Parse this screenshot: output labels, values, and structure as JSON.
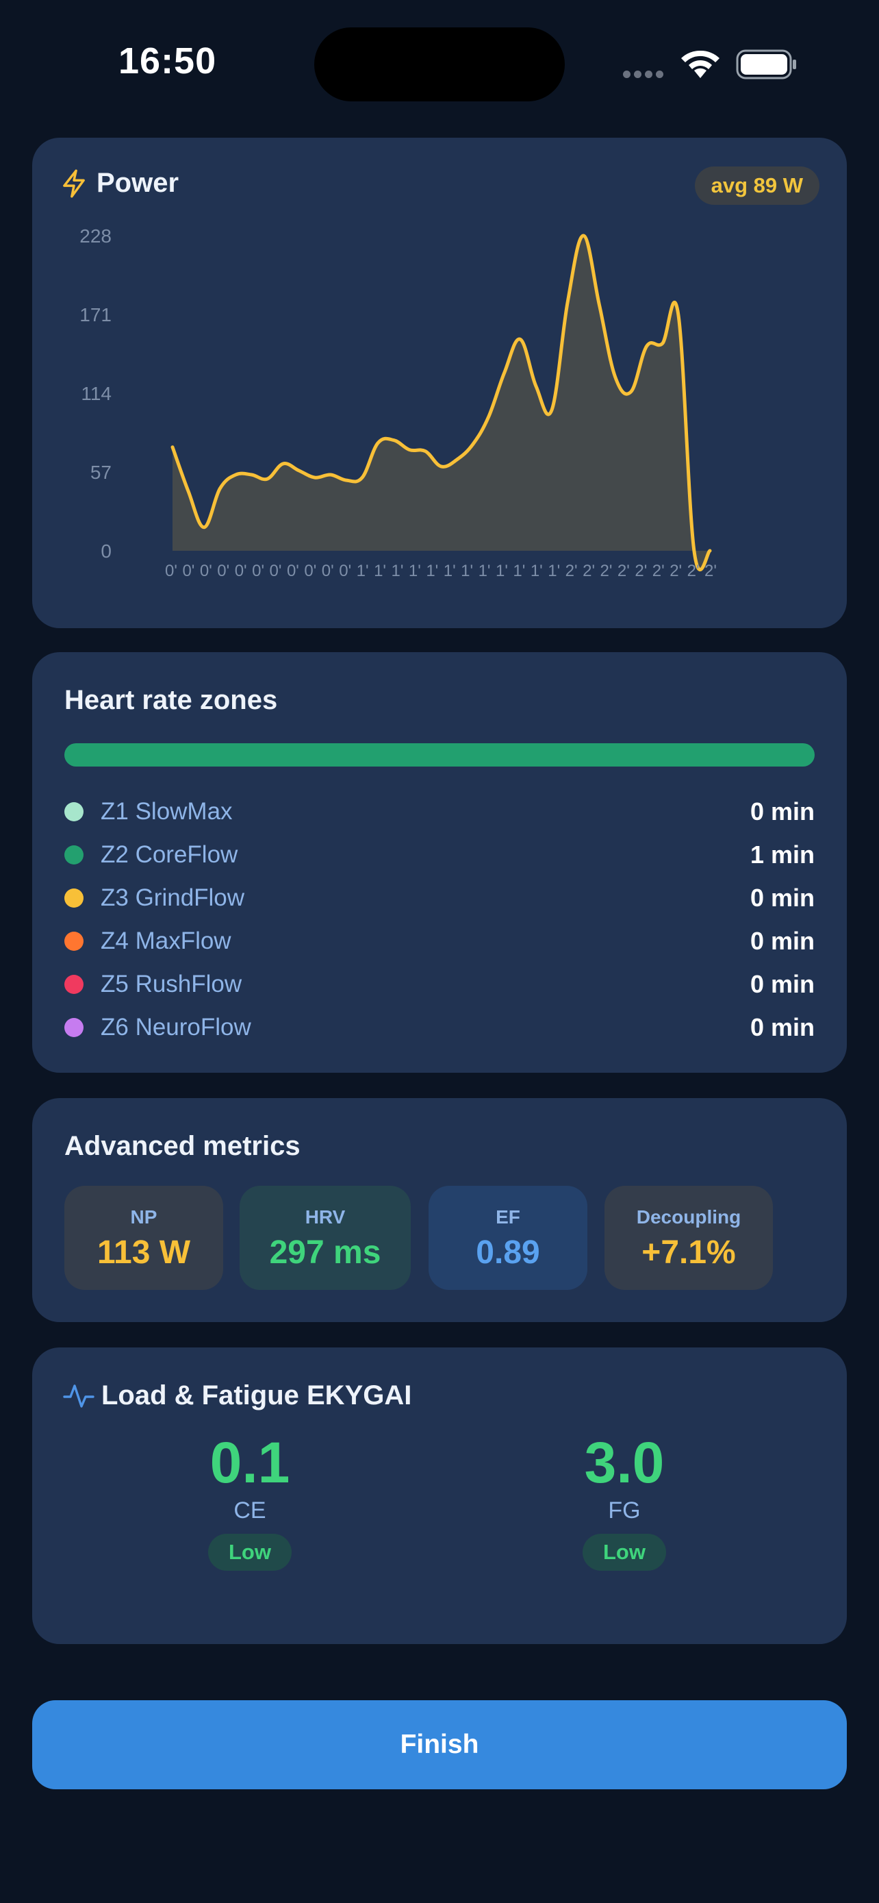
{
  "status_bar": {
    "time": "16:50"
  },
  "power": {
    "title": "Power",
    "avg_badge": "avg 89 W",
    "colors": {
      "line": "#f8c038",
      "area": "#4a4e4a"
    }
  },
  "chart_data": {
    "type": "area",
    "ylim": [
      0,
      228
    ],
    "y_ticks": [
      "228",
      "171",
      "114",
      "57",
      "0"
    ],
    "x_ticks": [
      "0'",
      "0'",
      "0'",
      "0'",
      "0'",
      "0'",
      "0'",
      "0'",
      "0'",
      "0'",
      "0'",
      "1'",
      "1'",
      "1'",
      "1'",
      "1'",
      "1'",
      "1'",
      "1'",
      "1'",
      "1'",
      "1'",
      "1'",
      "2'",
      "2'",
      "2'",
      "2'",
      "2'",
      "2'",
      "2'",
      "2'",
      "2'"
    ],
    "series": [
      {
        "values": [
          75,
          43,
          17,
          45,
          55,
          55,
          52,
          63,
          58,
          53,
          55,
          51,
          53,
          78,
          80,
          73,
          72,
          61,
          66,
          77,
          97,
          129,
          153,
          119,
          102,
          180,
          228,
          178,
          126,
          115,
          148,
          150,
          171,
          0,
          0
        ]
      }
    ]
  },
  "heart_rate_zones": {
    "title": "Heart rate zones",
    "bar_color": "#22a06f",
    "zones": [
      {
        "label": "Z1 SlowMax",
        "value": "0 min",
        "color": "#a7e6cc"
      },
      {
        "label": "Z2 CoreFlow",
        "value": "1 min",
        "color": "#23a06f"
      },
      {
        "label": "Z3 GrindFlow",
        "value": "0 min",
        "color": "#f8c038"
      },
      {
        "label": "Z4 MaxFlow",
        "value": "0 min",
        "color": "#ff7630"
      },
      {
        "label": "Z5 RushFlow",
        "value": "0 min",
        "color": "#f03a5f"
      },
      {
        "label": "Z6 NeuroFlow",
        "value": "0 min",
        "color": "#c67cf0"
      }
    ]
  },
  "advanced_metrics": {
    "title": "Advanced metrics",
    "items": [
      {
        "label": "NP",
        "value": "113 W",
        "color": "#f8c038",
        "bg": "#343d4b"
      },
      {
        "label": "HRV",
        "value": "297 ms",
        "color": "#3fd47c",
        "bg": "#25444f"
      },
      {
        "label": "EF",
        "value": "0.89",
        "color": "#5aa2f0",
        "bg": "#24416b"
      },
      {
        "label": "Decoupling",
        "value": "+7.1%",
        "color": "#f8c038",
        "bg": "#343d4b"
      }
    ]
  },
  "load_fatigue": {
    "title": "Load & Fatigue EKYGAI",
    "ce": {
      "value": "0.1",
      "label": "CE",
      "badge": "Low"
    },
    "fg": {
      "value": "3.0",
      "label": "FG",
      "badge": "Low"
    }
  },
  "actions": {
    "finish_label": "Finish"
  }
}
